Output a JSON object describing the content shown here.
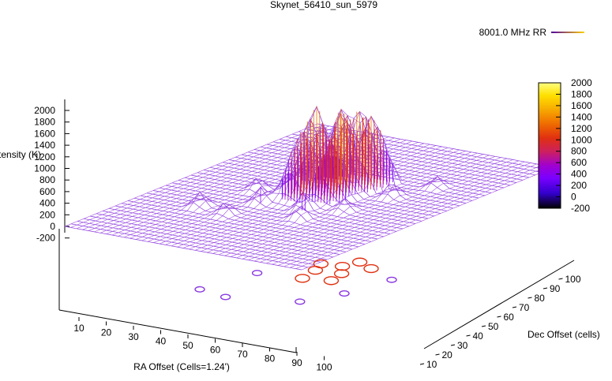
{
  "window": {
    "title": "Skynet_56410_sun_5979"
  },
  "legend": {
    "label": "8001.0 MHz RR",
    "gradient_colors": [
      "#5000a0",
      "#ffd000"
    ]
  },
  "colorbar": {
    "ticks": [
      "2000",
      "1800",
      "1600",
      "1400",
      "1200",
      "1000",
      "800",
      "600",
      "400",
      "200",
      "0",
      "-200"
    ],
    "palette": [
      "#000000",
      "#3300cc",
      "#7a00ff",
      "#a000d0",
      "#cc2060",
      "#e03010",
      "#f07000",
      "#f8b000",
      "#ffe000",
      "#ffff80"
    ]
  },
  "chart_data": {
    "type": "surface",
    "title": "Skynet_56410_sun_5979",
    "xlabel": "RA Offset (Cells=1.24')",
    "ylabel": "Dec Offset (cells)",
    "zlabel": "Intensity (K)",
    "x_ticks": [
      10,
      20,
      30,
      40,
      50,
      60,
      70,
      80,
      90,
      100
    ],
    "y_ticks": [
      10,
      20,
      30,
      40,
      50,
      60,
      70,
      80,
      90,
      100
    ],
    "z_ticks": [
      2000,
      1800,
      1600,
      1400,
      1200,
      1000,
      800,
      600,
      400,
      200,
      0,
      -200
    ],
    "xlim": [
      0,
      100
    ],
    "ylim": [
      0,
      100
    ],
    "zlim": [
      -200,
      2000
    ],
    "colorbar_range": [
      -200,
      2000
    ],
    "series": [
      {
        "name": "8001.0 MHz RR"
      }
    ],
    "baseline_level": 0,
    "peak_level": 2000,
    "source_region": {
      "x": [
        35,
        65
      ],
      "y": [
        40,
        70
      ]
    },
    "legend_position": "top-right"
  }
}
